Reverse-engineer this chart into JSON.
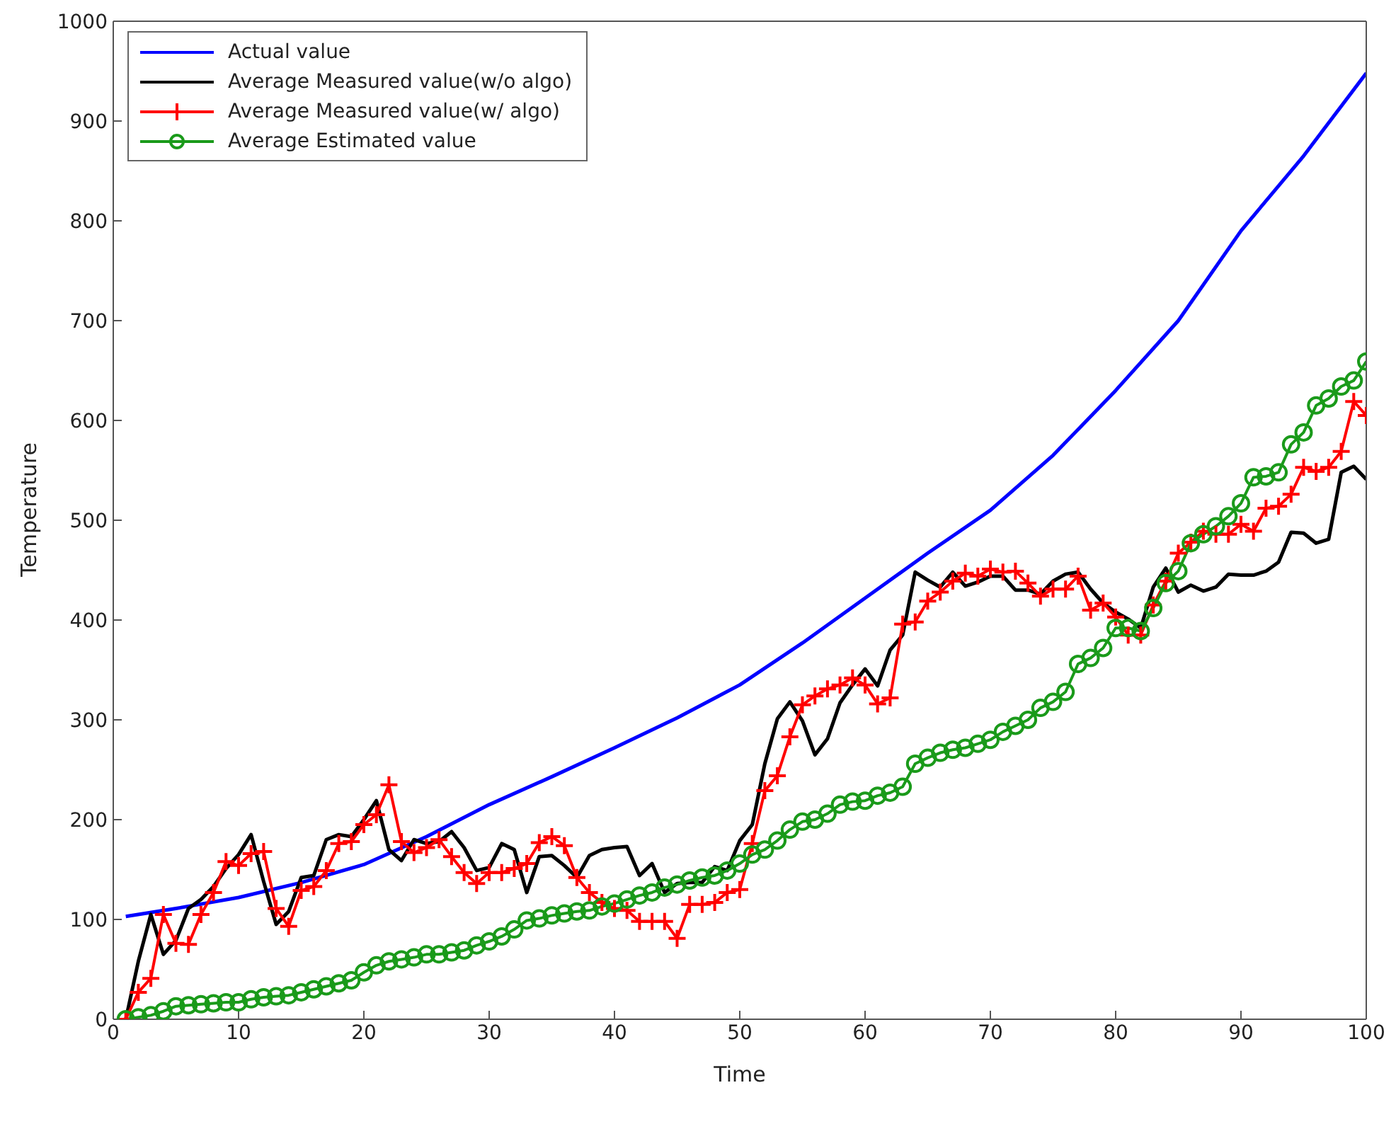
{
  "chart_data": {
    "type": "line",
    "xlabel": "Time",
    "ylabel": "Temperature",
    "x": [
      1,
      2,
      3,
      4,
      5,
      6,
      7,
      8,
      9,
      10,
      11,
      12,
      13,
      14,
      15,
      16,
      17,
      18,
      19,
      20,
      21,
      22,
      23,
      24,
      25,
      26,
      27,
      28,
      29,
      30,
      31,
      32,
      33,
      34,
      35,
      36,
      37,
      38,
      39,
      40,
      41,
      42,
      43,
      44,
      45,
      46,
      47,
      48,
      49,
      50,
      51,
      52,
      53,
      54,
      55,
      56,
      57,
      58,
      59,
      60,
      61,
      62,
      63,
      64,
      65,
      66,
      67,
      68,
      69,
      70,
      71,
      72,
      73,
      74,
      75,
      76,
      77,
      78,
      79,
      80,
      81,
      82,
      83,
      84,
      85,
      86,
      87,
      88,
      89,
      90,
      91,
      92,
      93,
      94,
      95,
      96,
      97,
      98,
      99,
      100
    ],
    "series": [
      {
        "name": "Actual value",
        "color": "#0000ff",
        "marker": "none",
        "x": [
          1,
          5,
          10,
          15,
          20,
          25,
          30,
          35,
          40,
          45,
          50,
          55,
          60,
          65,
          70,
          75,
          80,
          85,
          90,
          95,
          100
        ],
        "values": [
          103,
          111,
          122,
          137,
          155,
          183,
          215,
          243,
          272,
          302,
          335,
          377,
          422,
          467,
          510,
          565,
          630,
          700,
          790,
          865,
          948
        ]
      },
      {
        "name": "Average Measured value(w/o algo)",
        "color": "#000000",
        "marker": "none",
        "values": [
          0,
          58,
          105,
          65,
          79,
          111,
          120,
          133,
          151,
          165,
          185,
          138,
          95,
          108,
          142,
          144,
          180,
          185,
          183,
          200,
          219,
          170,
          159,
          180,
          176,
          178,
          188,
          172,
          149,
          152,
          176,
          170,
          127,
          163,
          164,
          154,
          142,
          164,
          170,
          172,
          173,
          144,
          156,
          127,
          136,
          137,
          137,
          153,
          149,
          179,
          195,
          256,
          301,
          318,
          299,
          265,
          281,
          317,
          335,
          351,
          334,
          370,
          385,
          448,
          440,
          433,
          448,
          434,
          438,
          444,
          444,
          430,
          430,
          426,
          439,
          446,
          448,
          431,
          417,
          408,
          401,
          392,
          433,
          452,
          428,
          435,
          429,
          433,
          446,
          445,
          445,
          449,
          458,
          488,
          487,
          477,
          481,
          548,
          554,
          541
        ]
      },
      {
        "name": "Average Measured value(w/ algo)",
        "color": "#ff0000",
        "marker": "cross",
        "values": [
          0,
          27,
          41,
          105,
          76,
          75,
          105,
          127,
          158,
          154,
          166,
          168,
          111,
          93,
          129,
          133,
          149,
          176,
          178,
          195,
          205,
          235,
          178,
          167,
          172,
          180,
          163,
          147,
          136,
          147,
          147,
          151,
          156,
          177,
          183,
          174,
          142,
          127,
          117,
          111,
          109,
          98,
          98,
          98,
          81,
          115,
          115,
          117,
          127,
          130,
          176,
          229,
          244,
          283,
          315,
          324,
          331,
          335,
          342,
          335,
          316,
          322,
          396,
          398,
          419,
          428,
          439,
          447,
          444,
          451,
          448,
          449,
          437,
          424,
          431,
          431,
          444,
          410,
          417,
          403,
          385,
          385,
          415,
          439,
          467,
          478,
          489,
          486,
          486,
          496,
          489,
          512,
          514,
          526,
          553,
          549,
          553,
          569,
          619,
          605
        ]
      },
      {
        "name": "Average Estimated value",
        "color": "#1a9a1a",
        "marker": "circle",
        "values": [
          0,
          2,
          4,
          8,
          13,
          14,
          15,
          16,
          17,
          17,
          20,
          22,
          23,
          24,
          27,
          30,
          33,
          36,
          39,
          47,
          54,
          58,
          60,
          62,
          65,
          65,
          67,
          69,
          74,
          78,
          83,
          90,
          99,
          101,
          104,
          106,
          108,
          109,
          113,
          116,
          120,
          124,
          127,
          132,
          135,
          139,
          142,
          144,
          149,
          156,
          165,
          170,
          179,
          190,
          198,
          200,
          206,
          215,
          218,
          219,
          224,
          227,
          233,
          256,
          262,
          267,
          270,
          272,
          276,
          280,
          288,
          294,
          300,
          312,
          318,
          328,
          356,
          362,
          372,
          392,
          392,
          389,
          412,
          437,
          449,
          477,
          486,
          494,
          504,
          517,
          543,
          544,
          548,
          576,
          588,
          615,
          622,
          634,
          640,
          659
        ]
      }
    ],
    "xlim": [
      0,
      100
    ],
    "xticks": [
      0,
      10,
      20,
      30,
      40,
      50,
      60,
      70,
      80,
      90,
      100
    ],
    "ylim": [
      0,
      1000
    ],
    "yticks": [
      0,
      100,
      200,
      300,
      400,
      500,
      600,
      700,
      800,
      900,
      1000
    ],
    "grid": false,
    "legend": "top left"
  }
}
